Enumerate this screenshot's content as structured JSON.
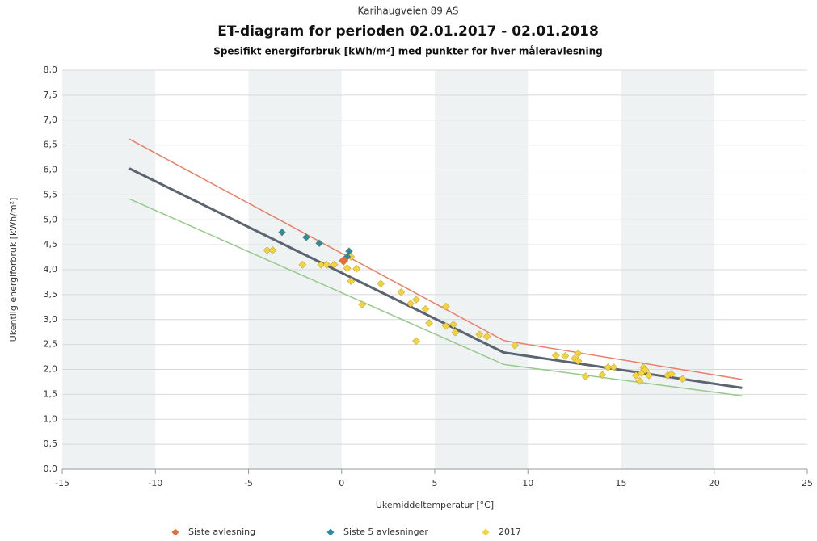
{
  "chart_data": {
    "type": "scatter",
    "pretitle": "Karihaugveien 89 AS",
    "title": "ET-diagram for perioden 02.01.2017 - 02.01.2018",
    "subtitle": "Spesifikt energiforbruk [kWh/m²] med punkter for hver måleravlesning",
    "x_label": "Ukemiddeltemperatur [°C]",
    "y_label": "Ukentlig energiforbruk [kWh/m²]",
    "xlim": [
      -15,
      25
    ],
    "xticks": [
      -15,
      -10,
      -5,
      0,
      5,
      10,
      15,
      20,
      25
    ],
    "ylim": [
      0,
      8
    ],
    "yticks": [
      {
        "value": 0,
        "label": "0,0"
      },
      {
        "value": 0.5,
        "label": "0,5"
      },
      {
        "value": 1,
        "label": "1,0"
      },
      {
        "value": 1.5,
        "label": "1,5"
      },
      {
        "value": 2,
        "label": "2,0"
      },
      {
        "value": 2.5,
        "label": "2,5"
      },
      {
        "value": 3,
        "label": "3,0"
      },
      {
        "value": 3.5,
        "label": "3,5"
      },
      {
        "value": 4,
        "label": "4,0"
      },
      {
        "value": 4.5,
        "label": "4,5"
      },
      {
        "value": 5,
        "label": "5,0"
      },
      {
        "value": 5.5,
        "label": "5,5"
      },
      {
        "value": 6,
        "label": "6,0"
      },
      {
        "value": 6.5,
        "label": "6,5"
      },
      {
        "value": 7,
        "label": "7,0"
      },
      {
        "value": 7.5,
        "label": "7,5"
      },
      {
        "value": 8,
        "label": "8,0"
      }
    ],
    "grid": true,
    "legend": "bottom",
    "series": [
      {
        "type": "line",
        "color": "#e8806a",
        "line_width": 1.5,
        "x": [
          -11.4,
          8.7,
          21.5
        ],
        "values": [
          6.62,
          2.58,
          1.8
        ]
      },
      {
        "type": "line",
        "color": "#5b6470",
        "line_width": 3,
        "x": [
          -11.4,
          8.7,
          21.5
        ],
        "values": [
          6.03,
          2.34,
          1.63
        ]
      },
      {
        "type": "line",
        "color": "#95c98a",
        "line_width": 1.5,
        "x": [
          -11.4,
          8.7,
          21.5
        ],
        "values": [
          5.42,
          2.1,
          1.47
        ]
      },
      {
        "type": "scatter",
        "name": "2017",
        "color": "#f5d33a",
        "x": [
          -4.0,
          -3.7,
          -2.1,
          -1.1,
          -0.8,
          -0.4,
          0.3,
          0.5,
          0.8,
          0.5,
          1.1,
          2.1,
          3.2,
          3.7,
          4.0,
          4.5,
          4.7,
          4.0,
          5.6,
          5.6,
          6.0,
          6.1,
          7.4,
          7.8,
          9.3,
          11.5,
          12.0,
          12.5,
          12.7,
          12.7,
          13.1,
          14.0,
          14.3,
          14.6,
          15.8,
          16.0,
          16.1,
          16.2,
          16.3,
          16.5,
          17.5,
          17.7,
          18.3
        ],
        "values": [
          4.39,
          4.39,
          4.1,
          4.1,
          4.1,
          4.1,
          4.03,
          4.26,
          4.02,
          3.77,
          3.3,
          3.72,
          3.55,
          3.32,
          3.4,
          3.21,
          2.93,
          2.57,
          3.26,
          2.87,
          2.9,
          2.74,
          2.7,
          2.66,
          2.48,
          2.28,
          2.27,
          2.22,
          2.32,
          2.17,
          1.86,
          1.89,
          2.04,
          2.04,
          1.88,
          1.77,
          1.93,
          2.04,
          1.99,
          1.88,
          1.88,
          1.91,
          1.81
        ]
      },
      {
        "type": "scatter",
        "name": "Siste 5 avlesninger",
        "color": "#2a8aa8",
        "x": [
          -3.2,
          -1.9,
          -1.2,
          0.4,
          0.3
        ],
        "values": [
          4.75,
          4.65,
          4.53,
          4.37,
          4.26
        ]
      },
      {
        "type": "scatter",
        "name": "Siste avlesning",
        "color": "#e0703a",
        "size": 6,
        "x": [
          0.1
        ],
        "values": [
          4.18
        ]
      }
    ]
  }
}
